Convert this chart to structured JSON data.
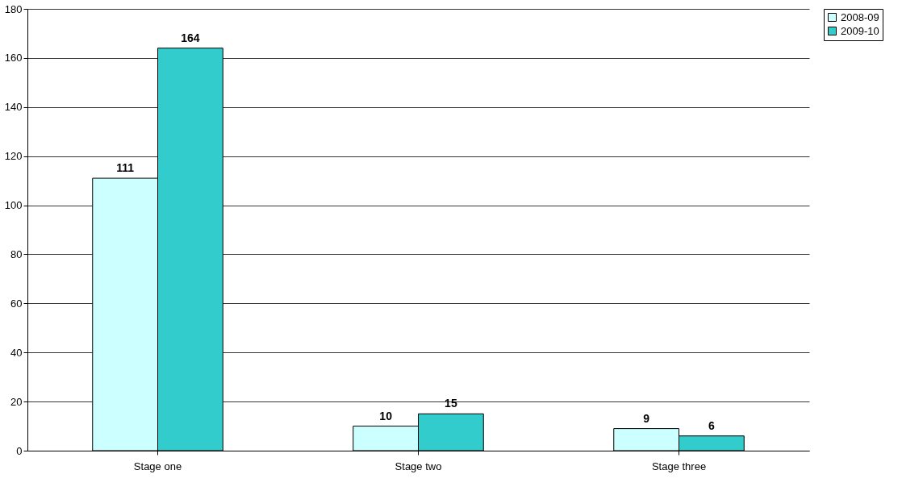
{
  "chart_data": {
    "type": "bar",
    "categories": [
      "Stage one",
      "Stage two",
      "Stage three"
    ],
    "series": [
      {
        "name": "2008-09",
        "color": "#ccffff",
        "values": [
          111,
          10,
          9
        ]
      },
      {
        "name": "2009-10",
        "color": "#33cccc",
        "values": [
          164,
          15,
          6
        ]
      }
    ],
    "ylim": [
      0,
      180
    ],
    "yticks": [
      0,
      20,
      40,
      60,
      80,
      100,
      120,
      140,
      160,
      180
    ],
    "grid": "y",
    "legend": "right",
    "data_labels": true
  }
}
